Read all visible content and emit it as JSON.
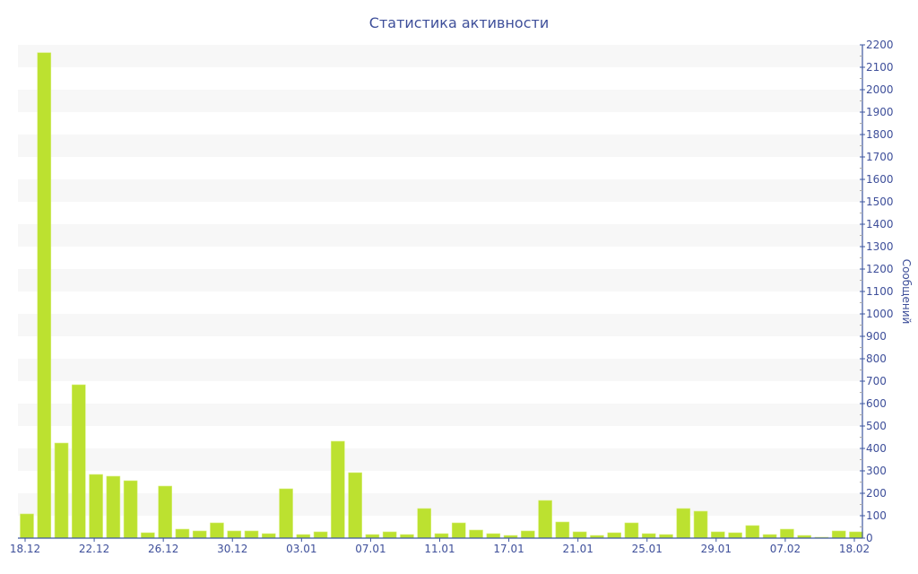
{
  "chart_data": {
    "type": "bar",
    "title": "Статистика активности",
    "xlabel": "",
    "ylabel": "Сообщений",
    "ylim": [
      0,
      2200
    ],
    "y_tick_step": 100,
    "y_axis_side": "right",
    "grid": "alternating horizontal bands",
    "legend": "none",
    "colors": {
      "bar": "#bce130",
      "axis": "#3e57a0",
      "text": "#3e4f9a",
      "band": "#f7f7f7"
    },
    "x_ticks": [
      {
        "index": 0,
        "label": "18.12"
      },
      {
        "index": 4,
        "label": "22.12"
      },
      {
        "index": 8,
        "label": "26.12"
      },
      {
        "index": 12,
        "label": "30.12"
      },
      {
        "index": 16,
        "label": "03.01"
      },
      {
        "index": 20,
        "label": "07.01"
      },
      {
        "index": 24,
        "label": "11.01"
      },
      {
        "index": 28,
        "label": "17.01"
      },
      {
        "index": 32,
        "label": "21.01"
      },
      {
        "index": 36,
        "label": "25.01"
      },
      {
        "index": 40,
        "label": "29.01"
      },
      {
        "index": 44,
        "label": "07.02"
      },
      {
        "index": 48,
        "label": "18.02"
      }
    ],
    "values": [
      108,
      2165,
      424,
      684,
      284,
      276,
      256,
      24,
      232,
      40,
      32,
      68,
      32,
      32,
      20,
      220,
      16,
      28,
      432,
      292,
      16,
      28,
      16,
      132,
      20,
      68,
      36,
      20,
      12,
      32,
      168,
      72,
      28,
      12,
      24,
      68,
      20,
      16,
      132,
      120,
      28,
      24,
      56,
      16,
      40,
      12,
      4,
      32,
      28
    ]
  }
}
